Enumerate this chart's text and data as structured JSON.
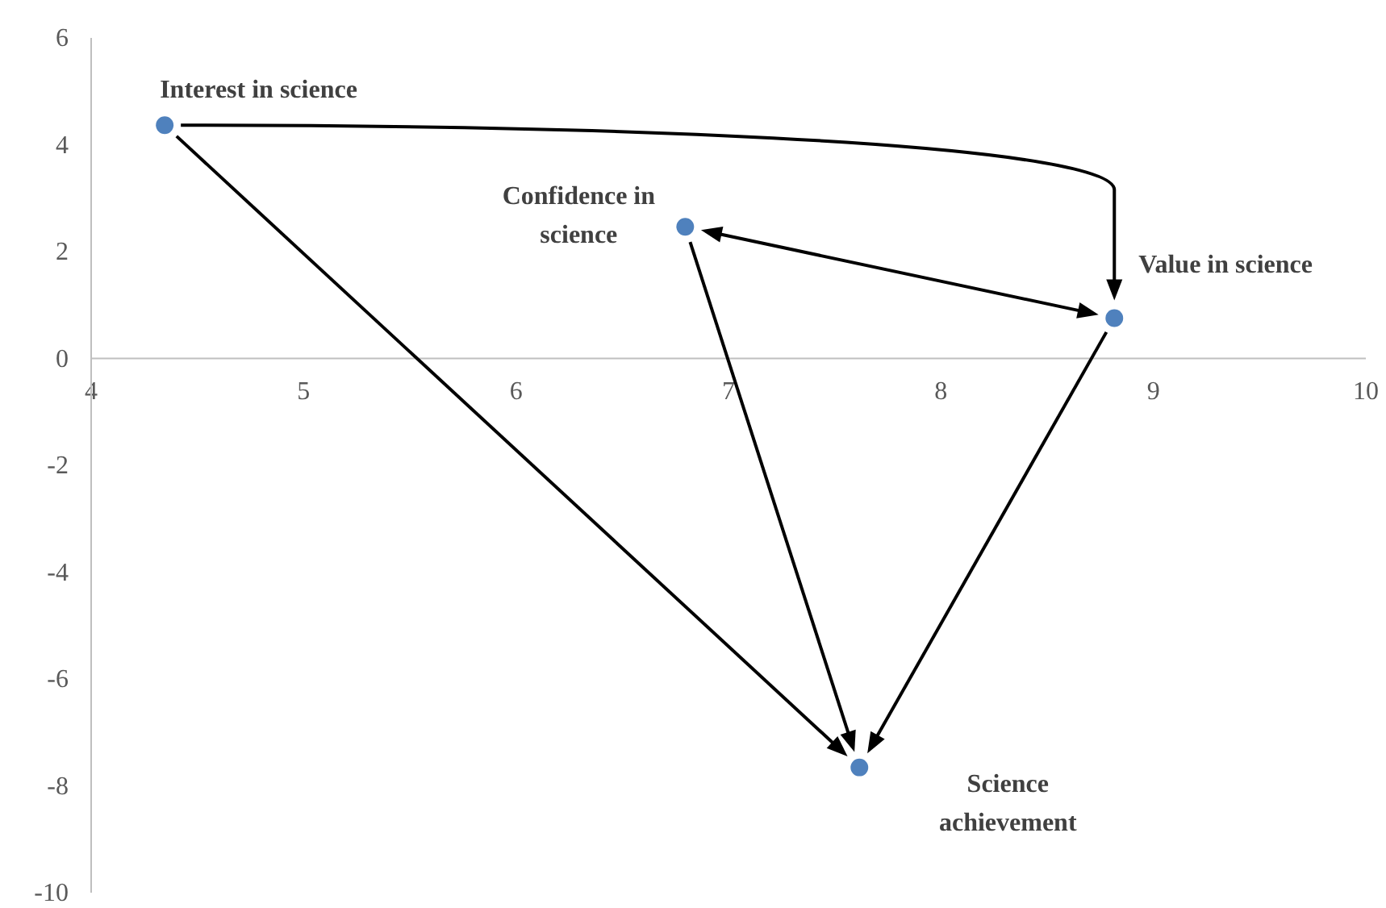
{
  "chart_data": {
    "type": "scatter",
    "x": [
      4.35,
      6.8,
      8.82,
      7.62
    ],
    "series": [
      {
        "color": "#4f81bd",
        "values": [
          4.35,
          2.45,
          0.74,
          -7.67
        ]
      }
    ],
    "xlim": [
      4,
      10
    ],
    "ylim": [
      -10,
      6
    ],
    "xticks": [
      4,
      5,
      6,
      7,
      8,
      9,
      10
    ],
    "yticks": [
      -10,
      -8,
      -6,
      -4,
      -2,
      0,
      2,
      4,
      6
    ],
    "marker": "circle",
    "grid": false,
    "annotations": [
      {
        "text": "Interest in science",
        "x": 4.35,
        "y": 4.35
      },
      {
        "text": "Confidence in science",
        "x": 6.8,
        "y": 2.45
      },
      {
        "text": "Value in science",
        "x": 8.82,
        "y": 0.74
      },
      "Science achievement"
    ]
  }
}
